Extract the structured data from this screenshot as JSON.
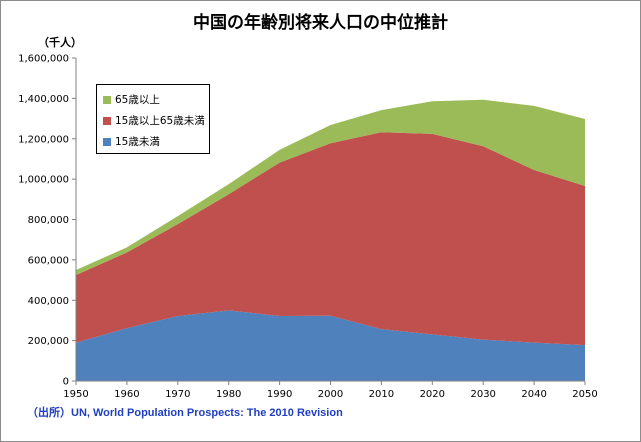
{
  "chart_data": {
    "type": "area",
    "title": "中国の年齢別将来人口の中位推計",
    "ylabel": "（千人）",
    "xlabel": "",
    "x": [
      1950,
      1960,
      1970,
      1980,
      1990,
      2000,
      2010,
      2020,
      2030,
      2040,
      2050
    ],
    "x_ticks": [
      "1950",
      "1960",
      "1970",
      "1980",
      "1990",
      "2000",
      "2010",
      "2020",
      "2030",
      "2040",
      "2050"
    ],
    "y_ticks": [
      "0",
      "200,000",
      "400,000",
      "600,000",
      "800,000",
      "1,000,000",
      "1,200,000",
      "1,400,000",
      "1,600,000"
    ],
    "ylim": [
      0,
      1600000
    ],
    "stacked": true,
    "grid": false,
    "legend_position": "top-left",
    "series": [
      {
        "name": "15歳未満",
        "color": "#4f81bd",
        "values": [
          190000,
          262000,
          322000,
          350000,
          322000,
          323000,
          257000,
          231000,
          205000,
          190000,
          178000
        ]
      },
      {
        "name": "15歳以上65歳未満",
        "color": "#c0504d",
        "values": [
          335000,
          375000,
          455000,
          575000,
          760000,
          855000,
          975000,
          993000,
          958000,
          855000,
          788000
        ]
      },
      {
        "name": "65歳以上",
        "color": "#9bbb59",
        "values": [
          25000,
          25000,
          40000,
          50000,
          63000,
          90000,
          110000,
          162000,
          230000,
          318000,
          332000
        ]
      }
    ],
    "legend_order": [
      "65歳以上",
      "15歳以上65歳未満",
      "15歳未満"
    ],
    "source": "（出所）UN, World Population Prospects: The 2010 Revision"
  }
}
